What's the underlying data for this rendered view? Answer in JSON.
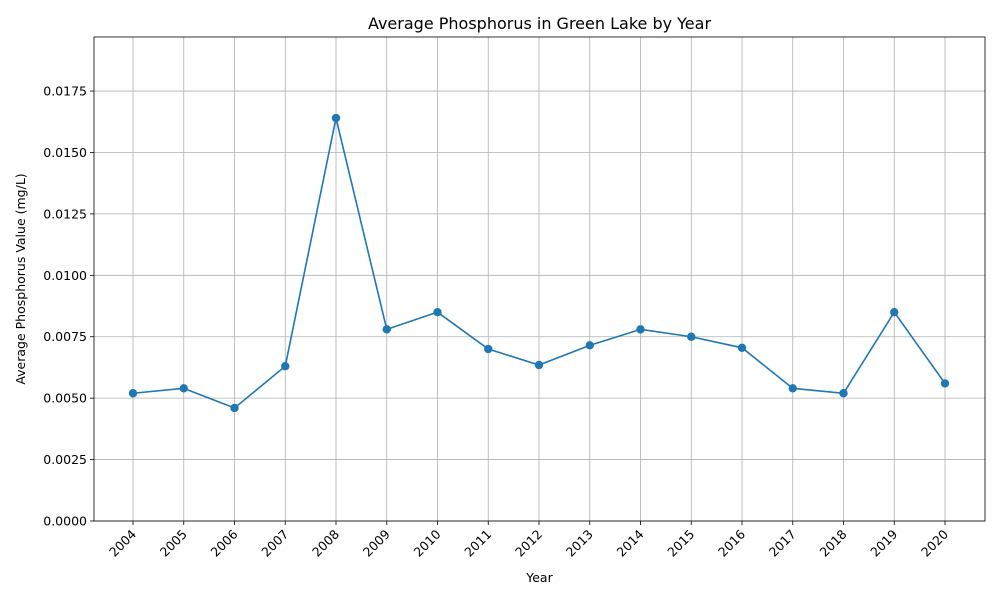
{
  "chart_data": {
    "type": "line",
    "title": "Average Phosphorus in Green Lake by Year",
    "xlabel": "Year",
    "ylabel": "Average Phosphorus Value (mg/L)",
    "categories": [
      "2004",
      "2005",
      "2006",
      "2007",
      "2008",
      "2009",
      "2010",
      "2011",
      "2012",
      "2013",
      "2014",
      "2015",
      "2016",
      "2017",
      "2018",
      "2019",
      "2020"
    ],
    "series": [
      {
        "values": [
          0.0052,
          0.0054,
          0.0046,
          0.0063,
          0.0164,
          0.0078,
          0.0085,
          0.007,
          0.00635,
          0.00715,
          0.0078,
          0.0075,
          0.00705,
          0.0054,
          0.0052,
          0.0085,
          0.0056
        ],
        "color": "#1f77b4",
        "marker": "circle"
      }
    ],
    "ylim": [
      0,
      0.0197
    ],
    "yticks": [
      "0.0000",
      "0.0025",
      "0.0050",
      "0.0075",
      "0.0100",
      "0.0125",
      "0.0150",
      "0.0175"
    ],
    "ytick_values": [
      0,
      0.0025,
      0.005,
      0.0075,
      0.01,
      0.0125,
      0.015,
      0.0175
    ],
    "grid": true,
    "xtick_rotation": 45
  }
}
